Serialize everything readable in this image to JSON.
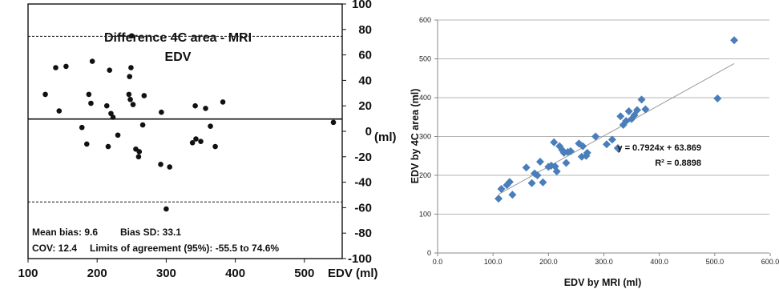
{
  "chart_data": [
    {
      "type": "scatter",
      "title": "Difference 4C area - MRI",
      "subtitle": "EDV",
      "xlabel": "EDV (ml)",
      "ylabel": "(ml)",
      "xlim": [
        100,
        550
      ],
      "ylim": [
        -100,
        100
      ],
      "x_ticks": [
        "100",
        "200",
        "300",
        "400",
        "500"
      ],
      "y_ticks": [
        "100",
        "80",
        "60",
        "40",
        "20",
        "0",
        "-20",
        "-40",
        "-60",
        "-80",
        "-100"
      ],
      "mean_bias_line": 9.6,
      "upper_limit_line": 74.6,
      "lower_limit_line": -55.5,
      "stats": {
        "mean_bias": "Mean bias: 9.6",
        "bias_sd": "Bias SD: 33.1",
        "cov": "COV: 12.4",
        "limits": "Limits of agreement (95%):  -55.5 to 74.6%"
      },
      "points": [
        {
          "x": 125,
          "y": 29
        },
        {
          "x": 140,
          "y": 50
        },
        {
          "x": 145,
          "y": 16
        },
        {
          "x": 155,
          "y": 51
        },
        {
          "x": 178,
          "y": 3
        },
        {
          "x": 185,
          "y": -10
        },
        {
          "x": 188,
          "y": 29
        },
        {
          "x": 191,
          "y": 22
        },
        {
          "x": 193,
          "y": 55
        },
        {
          "x": 214,
          "y": 20
        },
        {
          "x": 216,
          "y": -12
        },
        {
          "x": 218,
          "y": 48
        },
        {
          "x": 220,
          "y": 14
        },
        {
          "x": 223,
          "y": 11
        },
        {
          "x": 230,
          "y": -3
        },
        {
          "x": 246,
          "y": 29
        },
        {
          "x": 247,
          "y": 43
        },
        {
          "x": 248,
          "y": 25
        },
        {
          "x": 249,
          "y": 50
        },
        {
          "x": 250,
          "y": 75
        },
        {
          "x": 252,
          "y": 21
        },
        {
          "x": 256,
          "y": -14
        },
        {
          "x": 260,
          "y": -20
        },
        {
          "x": 261,
          "y": -16
        },
        {
          "x": 266,
          "y": 5
        },
        {
          "x": 268,
          "y": 28
        },
        {
          "x": 292,
          "y": -26
        },
        {
          "x": 293,
          "y": 15
        },
        {
          "x": 300,
          "y": -61
        },
        {
          "x": 305,
          "y": -28
        },
        {
          "x": 338,
          "y": -9
        },
        {
          "x": 342,
          "y": 20
        },
        {
          "x": 343,
          "y": -6
        },
        {
          "x": 350,
          "y": -8
        },
        {
          "x": 357,
          "y": 18
        },
        {
          "x": 364,
          "y": 4
        },
        {
          "x": 371,
          "y": -12
        },
        {
          "x": 382,
          "y": 23
        },
        {
          "x": 542,
          "y": 7
        }
      ]
    },
    {
      "type": "scatter",
      "xlabel": "EDV by MRI (ml)",
      "ylabel": "EDV by 4C area (ml)",
      "xlim": [
        0,
        600
      ],
      "ylim": [
        0,
        600
      ],
      "x_ticks": [
        "0.0",
        "100.0",
        "200.0",
        "300.0",
        "400.0",
        "500.0",
        "600.0"
      ],
      "y_ticks": [
        "0",
        "100",
        "200",
        "300",
        "400",
        "500",
        "600"
      ],
      "grid": "horizontal",
      "marker": "diamond",
      "marker_color": "#4a7ebb",
      "trendline": {
        "slope": 0.7924,
        "intercept": 63.869,
        "color": "#999999"
      },
      "equation": "y = 0.7924x + 63.869",
      "r_squared": "R² = 0.8898",
      "points": [
        {
          "x": 110,
          "y": 140
        },
        {
          "x": 115,
          "y": 165
        },
        {
          "x": 125,
          "y": 175
        },
        {
          "x": 130,
          "y": 183
        },
        {
          "x": 135,
          "y": 150
        },
        {
          "x": 160,
          "y": 220
        },
        {
          "x": 170,
          "y": 180
        },
        {
          "x": 175,
          "y": 205
        },
        {
          "x": 180,
          "y": 200
        },
        {
          "x": 185,
          "y": 235
        },
        {
          "x": 190,
          "y": 182
        },
        {
          "x": 200,
          "y": 222
        },
        {
          "x": 205,
          "y": 225
        },
        {
          "x": 210,
          "y": 285
        },
        {
          "x": 212,
          "y": 223
        },
        {
          "x": 215,
          "y": 210
        },
        {
          "x": 220,
          "y": 275
        },
        {
          "x": 225,
          "y": 265
        },
        {
          "x": 228,
          "y": 258
        },
        {
          "x": 232,
          "y": 232
        },
        {
          "x": 235,
          "y": 260
        },
        {
          "x": 240,
          "y": 262
        },
        {
          "x": 255,
          "y": 282
        },
        {
          "x": 260,
          "y": 248
        },
        {
          "x": 262,
          "y": 275
        },
        {
          "x": 268,
          "y": 250
        },
        {
          "x": 270,
          "y": 258
        },
        {
          "x": 285,
          "y": 300
        },
        {
          "x": 305,
          "y": 280
        },
        {
          "x": 315,
          "y": 292
        },
        {
          "x": 325,
          "y": 270
        },
        {
          "x": 330,
          "y": 352
        },
        {
          "x": 335,
          "y": 330
        },
        {
          "x": 340,
          "y": 340
        },
        {
          "x": 345,
          "y": 365
        },
        {
          "x": 350,
          "y": 345
        },
        {
          "x": 355,
          "y": 355
        },
        {
          "x": 360,
          "y": 368
        },
        {
          "x": 368,
          "y": 395
        },
        {
          "x": 375,
          "y": 370
        },
        {
          "x": 505,
          "y": 398
        },
        {
          "x": 535,
          "y": 548
        }
      ]
    }
  ]
}
